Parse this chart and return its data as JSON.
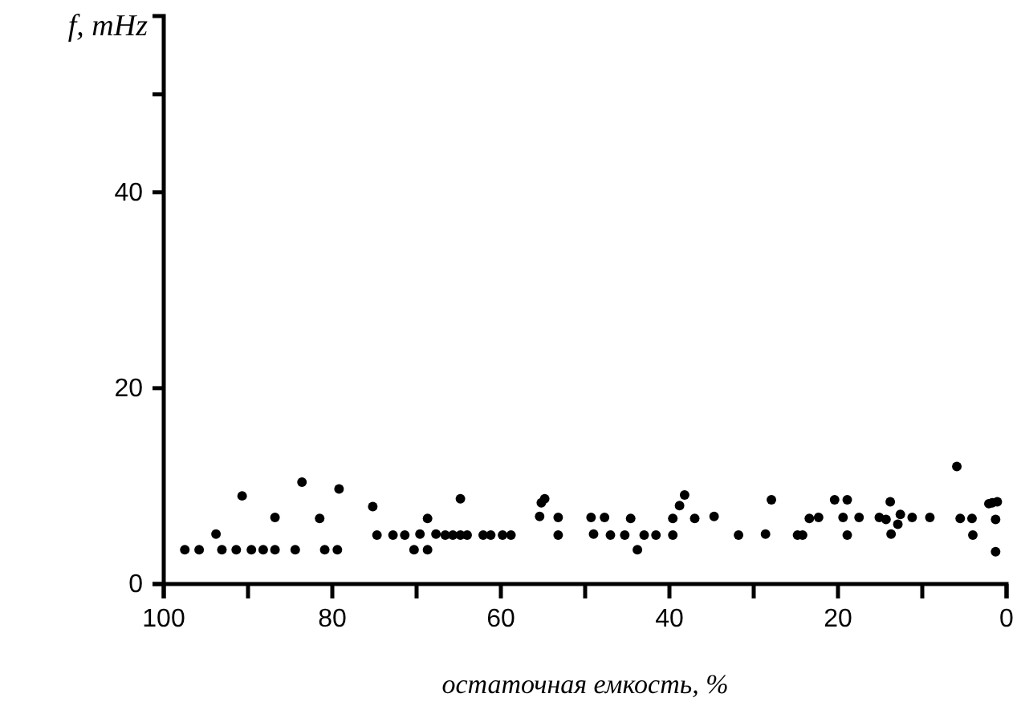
{
  "chart_data": {
    "type": "scatter",
    "xlabel": "остаточная емкость, %",
    "ylabel": "f, mHz",
    "xlim": [
      100,
      0
    ],
    "ylim": [
      0,
      58
    ],
    "xticks": [
      100,
      {
        "value": 90,
        "label": null
      },
      80,
      {
        "value": 70,
        "label": null
      },
      60,
      {
        "value": 50,
        "label": null
      },
      40,
      {
        "value": 30,
        "label": null
      },
      20,
      {
        "value": 10,
        "label": null
      },
      0
    ],
    "yticks": [
      0,
      20,
      40,
      {
        "value": 50,
        "label": null
      }
    ],
    "grid": false,
    "marker": "circle",
    "color": "#000000",
    "x": [
      97.5,
      95.8,
      93.8,
      93.1,
      90.7,
      91.4,
      89.6,
      88.2,
      86.8,
      86.8,
      84.4,
      83.6,
      81.5,
      80.9,
      79.4,
      79.2,
      75.2,
      74.7,
      72.8,
      71.4,
      70.3,
      69.6,
      68.7,
      68.7,
      67.7,
      66.6,
      65.7,
      64.8,
      64.8,
      64.0,
      62.1,
      61.2,
      59.8,
      58.8,
      55.4,
      55.2,
      54.8,
      53.2,
      53.2,
      49.3,
      49.0,
      47.7,
      47.0,
      45.3,
      44.6,
      43.8,
      43.0,
      41.6,
      39.6,
      39.6,
      38.8,
      38.2,
      37.0,
      34.7,
      31.8,
      28.6,
      27.9,
      24.8,
      24.2,
      23.4,
      22.3,
      20.4,
      19.4,
      18.9,
      18.9,
      17.5,
      15.1,
      14.3,
      13.8,
      13.7,
      12.9,
      12.6,
      11.2,
      9.1,
      5.9,
      5.5,
      4.1,
      4.0,
      2.1,
      1.7,
      1.1,
      1.3,
      1.3
    ],
    "values": [
      3.5,
      3.5,
      5.1,
      3.5,
      9.0,
      3.5,
      3.5,
      3.5,
      6.8,
      3.5,
      3.5,
      10.4,
      6.7,
      3.5,
      3.5,
      9.7,
      7.9,
      5.0,
      5.0,
      5.0,
      3.5,
      5.1,
      6.7,
      3.5,
      5.1,
      5.0,
      5.0,
      8.7,
      5.0,
      5.0,
      5.0,
      5.0,
      5.0,
      5.0,
      6.9,
      8.3,
      8.7,
      6.8,
      5.0,
      6.8,
      5.1,
      6.8,
      5.0,
      5.0,
      6.7,
      3.5,
      5.0,
      5.0,
      5.0,
      6.7,
      8.0,
      9.1,
      6.7,
      6.9,
      5.0,
      5.1,
      8.6,
      5.0,
      5.0,
      6.7,
      6.8,
      8.6,
      6.8,
      8.6,
      5.0,
      6.8,
      6.8,
      6.6,
      8.4,
      5.1,
      6.1,
      7.1,
      6.8,
      6.8,
      12.0,
      6.7,
      6.7,
      5.0,
      8.2,
      8.3,
      8.4,
      6.6,
      3.3
    ]
  }
}
